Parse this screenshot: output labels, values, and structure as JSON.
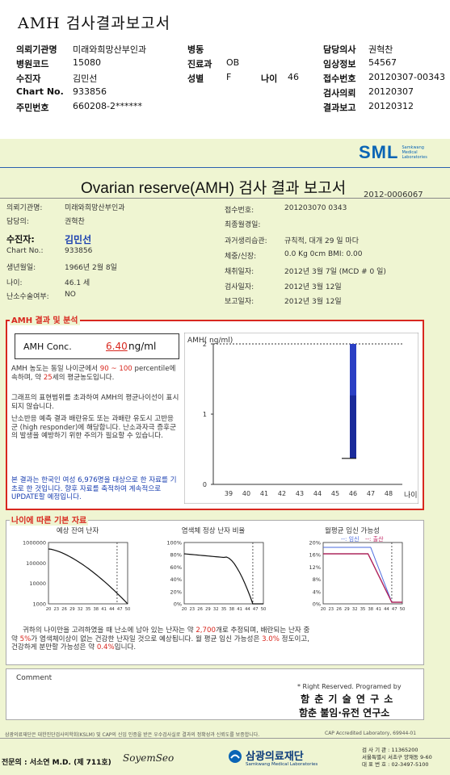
{
  "top_title": "AMH 검사결과보고서",
  "header": {
    "rows": [
      {
        "l1": "의뢰기관명",
        "v1": "미래와희망산부인과",
        "l2": "병동",
        "v2": "",
        "l3": "",
        "v3": "",
        "l4": "담당의사",
        "v4": "권혁찬"
      },
      {
        "l1": "병원코드",
        "v1": "15080",
        "l2": "진료과",
        "v2": "OB",
        "l3": "",
        "v3": "",
        "l4": "임상정보",
        "v4": "54567"
      },
      {
        "l1": "수진자",
        "v1": "김민선",
        "l2": "성별",
        "v2": "F",
        "l3": "나이",
        "v3": "46",
        "l4": "접수번호",
        "v4": "20120307-00343"
      },
      {
        "l1": "Chart No.",
        "v1": "933856",
        "l2": "",
        "v2": "",
        "l3": "",
        "v3": "",
        "l4": "검사의뢰",
        "v4": "20120307"
      },
      {
        "l1": "주민번호",
        "v1": "660208-2******",
        "l2": "",
        "v2": "",
        "l3": "",
        "v3": "",
        "l4": "결과보고",
        "v4": "20120312"
      }
    ]
  },
  "logo": {
    "text": "SML",
    "sub1": "Samkwang",
    "sub2": "Medical",
    "sub3": "Laboratories"
  },
  "report": {
    "title": "Ovarian reserve(AMH) 검사 결과 보고서",
    "number": "2012-0006067"
  },
  "info_left": [
    {
      "label": "의뢰기관명:",
      "value": "미래와희망산부인과"
    },
    {
      "label": "담당의:",
      "value": "권혁찬"
    },
    {
      "label": "수진자:",
      "value": "김민선"
    },
    {
      "label": "Chart No.:",
      "value": "933856"
    },
    {
      "label": "생년월일:",
      "value": "1966년 2월 8일"
    },
    {
      "label": "나이:",
      "value": "46.1 세"
    },
    {
      "label": "난소수술여부:",
      "value": "NO"
    }
  ],
  "info_right": [
    {
      "label": "접수번호:",
      "value": "201203070 0343"
    },
    {
      "label": "최종월경일:",
      "value": ""
    },
    {
      "label": "과거생리습관:",
      "value": "규칙적,  대개   29 일 마다"
    },
    {
      "label": "체중/신장:",
      "value": "0.0  Kg        0cm   BMI:   0.00"
    },
    {
      "label": "채취일자:",
      "value": "2012년 3월 7일    (MCD # 0 일)"
    },
    {
      "label": "검사일자:",
      "value": "2012년 3월 12일"
    },
    {
      "label": "보고일자:",
      "value": "2012년 3월 12일"
    }
  ],
  "amh": {
    "section_label": "AMH 결과 및 분석",
    "conc_label": "AMH Conc.",
    "conc_value": "6.40",
    "conc_unit": "ng/ml",
    "p1a": "AMH 농도는 동일 나이군에서",
    "p1_range": "90 ~ 100",
    "p1b": "percentile에 속하며, 약",
    "p1_age": "25",
    "p1c": "세의 평균농도입니다.",
    "p2": "그래프의 표현범위를 초과하여 AMH의 평균나이선이 표시되지 않습니다.",
    "p3": "난소반응 예측 결과 배란유도 또는 과배란 유도시 고반응군 (high responder)에 해당합니다. 난소과자극 증후군의 발생을 예방하기 위한 주의가 필요할 수 있습니다.",
    "p4": "본 결과는 한국인 여성 6,976명을 대상으로 한 자료를 기초로 한 것입니다. 향후 자료를 축적하여 계속적으로 UPDATE할 예정입니다."
  },
  "chart_data": [
    {
      "type": "bar",
      "ylabel": "AMH( ng/ml)",
      "xlabel": "나이",
      "ylim": [
        0,
        2
      ],
      "yticks": [
        "0",
        "1",
        "2"
      ],
      "categories": [
        "39",
        "40",
        "41",
        "42",
        "43",
        "44",
        "45",
        "46",
        "47",
        "48"
      ],
      "bar": {
        "age": "46",
        "low": 0.37,
        "high": 2.0
      },
      "patient_marker": 0.37,
      "reference_line": 2,
      "colors": {
        "bar": "#1a2a9a",
        "bar_light": "#2a3fc4"
      }
    },
    {
      "type": "line",
      "title": "예상 잔여 난자",
      "yticks": [
        "1000000",
        "100000",
        "10000",
        "1000"
      ],
      "xticks": [
        "20",
        "23",
        "26",
        "29",
        "32",
        "35",
        "38",
        "41",
        "44",
        "47",
        "50"
      ],
      "marker_age": "46"
    },
    {
      "type": "line",
      "title": "염색체 정상 난자 비율",
      "yticks": [
        "100%",
        "80%",
        "60%",
        "40%",
        "20%",
        "0%"
      ],
      "xticks": [
        "20",
        "23",
        "26",
        "29",
        "32",
        "35",
        "38",
        "41",
        "44",
        "47",
        "50"
      ],
      "marker_age": "46"
    },
    {
      "type": "line",
      "title": "월평균 임신 가능성",
      "legend_a": "--: 임신",
      "legend_b": "--: 출산",
      "yticks": [
        "20%",
        "16%",
        "12%",
        "8%",
        "4%",
        "0%"
      ],
      "xticks": [
        "20",
        "23",
        "26",
        "29",
        "32",
        "35",
        "38",
        "41",
        "44",
        "47",
        "50"
      ],
      "marker_age": "46"
    }
  ],
  "basics": {
    "section_label": "나이에 따른 기본 자료",
    "s1": "귀하의 나이만을 고려하였을 때 난소에 남아 있는 난자는 약",
    "eggs": "2,700",
    "s2": "개로 추정되며, 배란되는 난자 중",
    "s3": "약",
    "pct": "5%",
    "s4": "가 염색체이상이 없는 건강한 난자일 것으로 예상됩니다. 월 평균 임신 가능성은",
    "preg": "3.0%",
    "s5": "정도이고,",
    "s6": "건강하게 분만할 가능성은 약",
    "birth": "0.4%",
    "s7": "입니다."
  },
  "comment": {
    "label": "Comment",
    "rights": "* Right Reserved. Programed by",
    "org1": "함 춘 기 술 연 구 소",
    "org2": "함춘 불임·유전 연구소"
  },
  "footer": {
    "note": "삼광의료재단은 대한진단검사의학회(KSLM) 및 CAP의 신임 인증을 받은 우수검사실로 결과의 정확성과 신뢰도를 보증합니다.",
    "cap": "CAP  Accredited  Laboratory,  69944-01",
    "doctor": "전문의 : 서소연 M.D. (제 711호)",
    "sign": "SoyemSeo",
    "foundation": "삼광의료재단",
    "foundation_en": "Samkwang Medical Laboratories",
    "addr1": "검 사 기 관 : 11365200",
    "addr2": "서울특별시 서초구 양재동 9-60",
    "addr3": "대 표 번 호 : 02-3497-5100"
  }
}
